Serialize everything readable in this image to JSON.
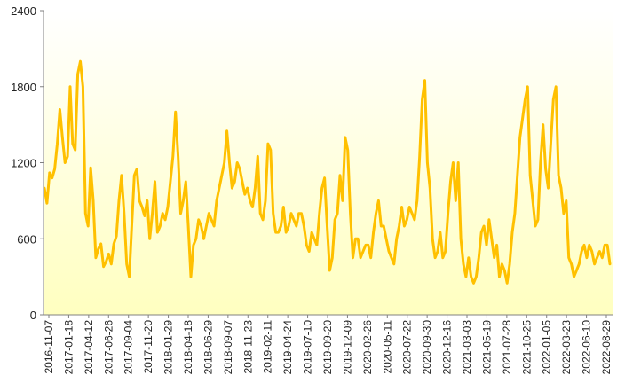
{
  "chart_data": {
    "type": "line",
    "title": "",
    "xlabel": "",
    "ylabel": "",
    "ylim": [
      0,
      2400
    ],
    "yticks": [
      0,
      600,
      1200,
      1800,
      2400
    ],
    "grid": false,
    "legend": "none",
    "colors": {
      "line": "#FFC000",
      "bg_top": "#FFFFFF",
      "bg_bottom": "#FFFFC0",
      "axis": "#808080"
    },
    "x_tick_labels": [
      "2016-11-07",
      "2017-01-18",
      "2017-04-12",
      "2017-06-26",
      "2017-09-04",
      "2017-11-20",
      "2018-01-29",
      "2018-04-18",
      "2018-06-29",
      "2018-09-07",
      "2018-11-23",
      "2019-02-11",
      "2019-04-24",
      "2019-07-10",
      "2019-09-20",
      "2019-12-09",
      "2020-02-26",
      "2020-05-11",
      "2020-07-22",
      "2020-09-30",
      "2020-12-16",
      "2021-03-03",
      "2021-05-19",
      "2021-07-28",
      "2021-10-25",
      "2022-01-05",
      "2022-03-23",
      "2022-06-10",
      "2022-08-29"
    ],
    "series": [
      {
        "values": [
          1000,
          880,
          1120,
          1080,
          1150,
          1350,
          1620,
          1400,
          1200,
          1250,
          1800,
          1350,
          1300,
          1900,
          2000,
          1800,
          800,
          700,
          1160,
          900,
          450,
          520,
          560,
          380,
          420,
          480,
          400,
          560,
          620,
          900,
          1100,
          800,
          400,
          300,
          700,
          1100,
          1150,
          900,
          850,
          780,
          900,
          600,
          800,
          1050,
          650,
          700,
          800,
          750,
          850,
          1050,
          1250,
          1600,
          1250,
          800,
          900,
          1050,
          700,
          300,
          550,
          600,
          750,
          700,
          600,
          700,
          800,
          750,
          700,
          900,
          1000,
          1100,
          1200,
          1450,
          1200,
          1000,
          1050,
          1200,
          1150,
          1050,
          950,
          1000,
          900,
          850,
          1000,
          1250,
          800,
          750,
          900,
          1350,
          1300,
          800,
          650,
          650,
          700,
          850,
          650,
          700,
          800,
          750,
          700,
          800,
          800,
          700,
          550,
          500,
          650,
          600,
          550,
          800,
          1000,
          1080,
          700,
          350,
          450,
          750,
          800,
          1100,
          900,
          1400,
          1300,
          800,
          450,
          600,
          600,
          450,
          500,
          550,
          550,
          450,
          650,
          800,
          900,
          700,
          700,
          600,
          500,
          450,
          400,
          600,
          700,
          850,
          700,
          750,
          850,
          800,
          750,
          900,
          1250,
          1700,
          1850,
          1200,
          1000,
          600,
          450,
          500,
          650,
          450,
          500,
          800,
          1050,
          1200,
          900,
          1200,
          600,
          400,
          300,
          450,
          300,
          250,
          300,
          450,
          650,
          700,
          550,
          750,
          600,
          450,
          550,
          300,
          400,
          350,
          250,
          400,
          650,
          800,
          1100,
          1400,
          1550,
          1700,
          1800,
          1100,
          900,
          700,
          750,
          1200,
          1500,
          1150,
          1000,
          1350,
          1700,
          1800,
          1100,
          1000,
          800,
          900,
          450,
          400,
          300,
          350,
          400,
          500,
          550,
          450,
          550,
          500,
          400,
          450,
          500,
          450,
          550,
          550,
          400
        ]
      }
    ]
  }
}
